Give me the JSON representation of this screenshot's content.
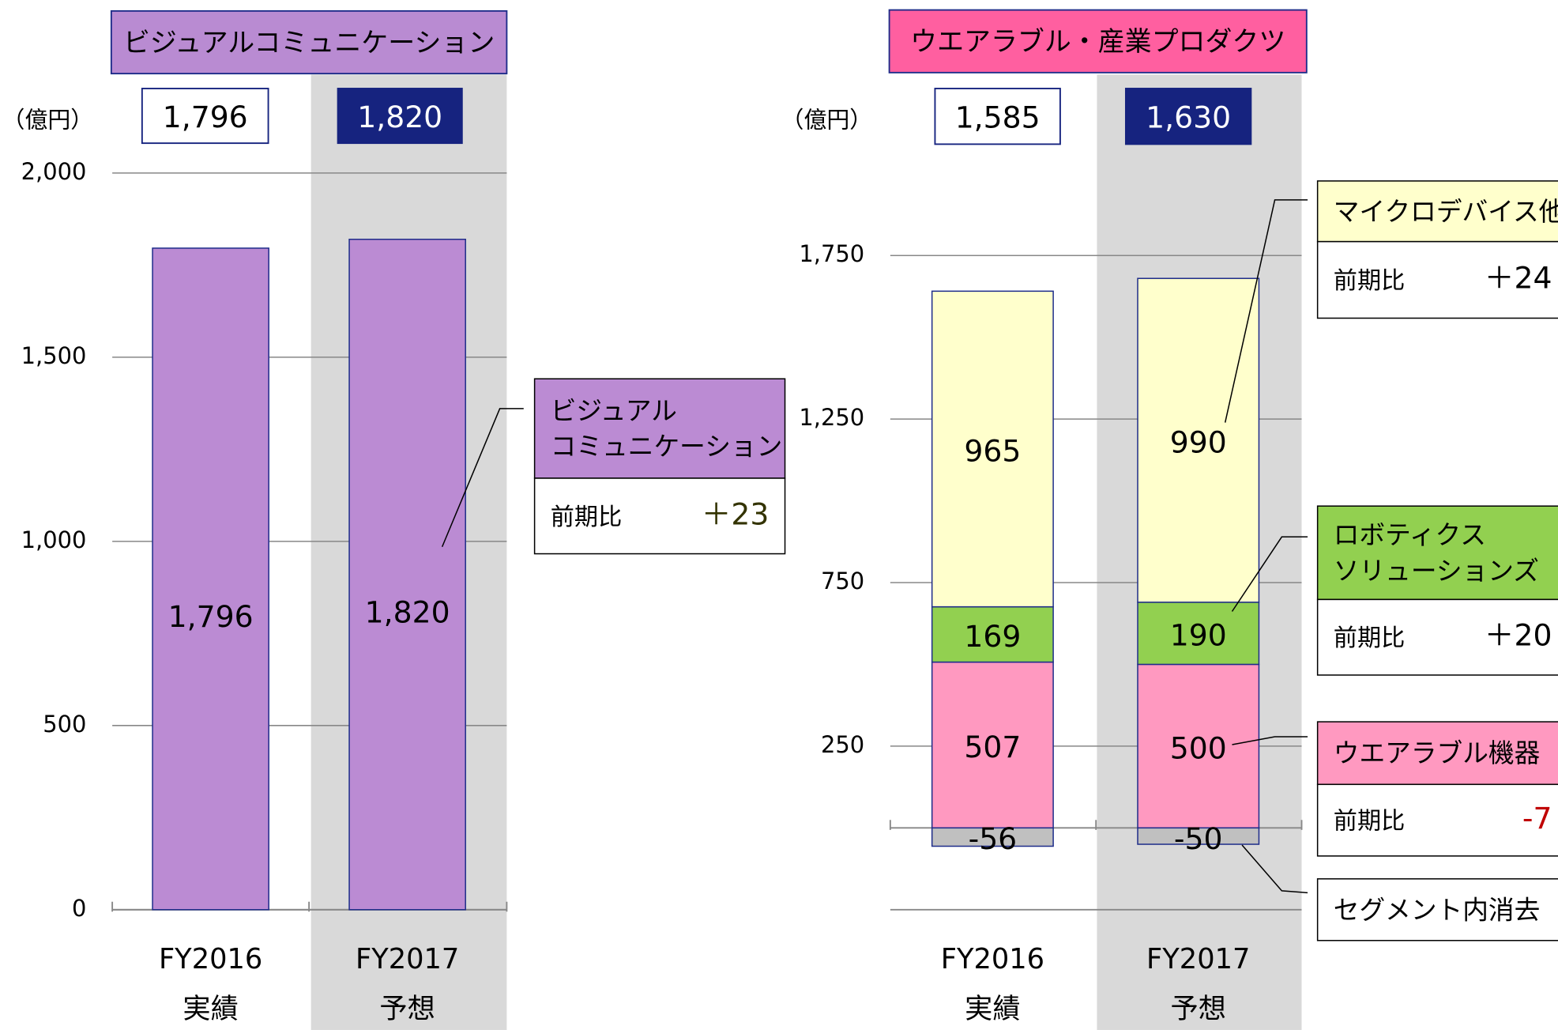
{
  "chart_data": [
    {
      "type": "bar",
      "title": "ビジュアルコミュニケーション",
      "title_color": "#b98bd2",
      "unit": "（億円）",
      "categories": [
        "FY2016",
        "FY2017"
      ],
      "sublabels": [
        "実績",
        "予想"
      ],
      "total_labels": [
        "1,796",
        "1,820"
      ],
      "values": [
        1796,
        1820
      ],
      "value_labels": [
        "1,796",
        "1,820"
      ],
      "color": "#bb8bd3",
      "ylim": [
        0,
        2000
      ],
      "yticks": [
        0,
        500,
        {
          "value": 1000,
          "label": "1,000"
        },
        {
          "value": 1500,
          "label": "1,500"
        },
        {
          "value": 2000,
          "label": "2,000"
        }
      ],
      "grid": true,
      "change_label": "前期比",
      "annotations": [
        {
          "name": [
            "ビジュアル",
            "コミュニケーション"
          ],
          "change": "＋23",
          "color": "#bb8bd3",
          "change_color": "#333300"
        }
      ]
    },
    {
      "type": "stacked_bar",
      "title": "ウエアラブル・産業プロダクツ",
      "title_color": "#ff5fa0",
      "unit": "（億円）",
      "categories": [
        "FY2016",
        "FY2017"
      ],
      "sublabels": [
        "実績",
        "予想"
      ],
      "total_labels": [
        "1,585",
        "1,630"
      ],
      "series": [
        {
          "name": [
            "ウエアラブル機器"
          ],
          "color": "#ff99c0",
          "values": [
            507,
            500
          ],
          "change": "-7",
          "change_color": "#c00000"
        },
        {
          "name": [
            "ロボティクス",
            "ソリューションズ"
          ],
          "color": "#92d050",
          "values": [
            169,
            190
          ],
          "change": "＋20",
          "change_color": "#000000"
        },
        {
          "name": [
            "マイクロデバイス他"
          ],
          "color": "#ffffcc",
          "values": [
            965,
            990
          ],
          "change": "＋24",
          "change_color": "#000000"
        },
        {
          "name": [
            "セグメント内消去"
          ],
          "color": "#c0c0c0",
          "values": [
            -56,
            -50
          ]
        }
      ],
      "ylim": [
        -250,
        1750
      ],
      "yticks": [
        250,
        750,
        {
          "value": 1250,
          "label": "1,250"
        },
        {
          "value": 1750,
          "label": "1,750"
        }
      ],
      "grid": true,
      "change_label": "前期比"
    }
  ]
}
